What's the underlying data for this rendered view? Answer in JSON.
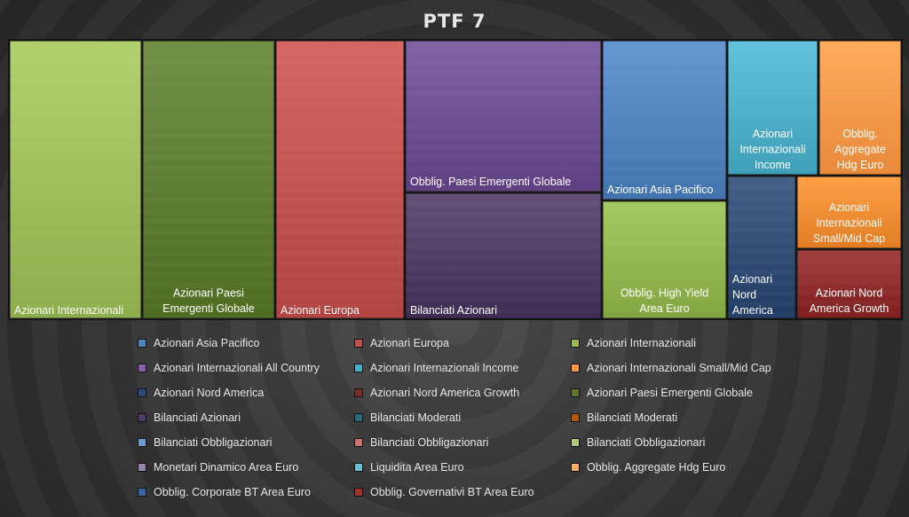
{
  "chart_data": {
    "type": "treemap",
    "title": "PTF 7",
    "tiles": [
      {
        "label": "Azionari Internazionali",
        "series": "Azionari Internazionali",
        "color": "#9bbb59"
      },
      {
        "label": "Azionari Paesi\nEmergenti Globale",
        "series": "Azionari Paesi Emergenti Globale",
        "color": "#5b7a2e"
      },
      {
        "label": "Azionari Europa",
        "series": "Azionari Europa",
        "color": "#c0504d"
      },
      {
        "label": "Obblig. Paesi Emergenti Globale",
        "series": "Azionari Internazionali All Country",
        "color": "#6b4c8f"
      },
      {
        "label": "Bilanciati Azionari",
        "series": "Bilanciati Azionari",
        "color": "#4d3a63"
      },
      {
        "label": "Azionari Asia Pacifico",
        "series": "Azionari Asia Pacifico",
        "color": "#4f81bd"
      },
      {
        "label": "Obblig. High Yield\nArea Euro",
        "series": "Bilanciati Obbligazionari",
        "color": "#8fb34d"
      },
      {
        "label": "Azionari\nInternazionali\nIncome",
        "series": "Azionari Internazionali Income",
        "color": "#4bacc6"
      },
      {
        "label": "Obblig.\nAggregate\nHdg Euro",
        "series": "Obblig. Aggregate Hdg Euro",
        "color": "#f79646"
      },
      {
        "label": "Azionari\nNord\nAmerica",
        "series": "Azionari Nord America",
        "color": "#2e4a73"
      },
      {
        "label": "Azionari\nInternazionali\nSmall/Mid Cap",
        "series": "Azionari Internazionali Small/Mid Cap",
        "color": "#f08a30"
      },
      {
        "label": "Azionari Nord\nAmerica Growth",
        "series": "Azionari Nord America Growth",
        "color": "#8c2a2a"
      }
    ],
    "legend": [
      {
        "name": "Azionari Asia Pacifico",
        "color": "#4f81bd"
      },
      {
        "name": "Azionari Europa",
        "color": "#c0504d"
      },
      {
        "name": "Azionari Internazionali",
        "color": "#9bbb59"
      },
      {
        "name": "Azionari Internazionali All Country",
        "color": "#8064a2"
      },
      {
        "name": "Azionari Internazionali Income",
        "color": "#4bacc6"
      },
      {
        "name": "Azionari Internazionali Small/Mid Cap",
        "color": "#f79646"
      },
      {
        "name": "Azionari Nord America",
        "color": "#2c4d75"
      },
      {
        "name": "Azionari Nord America Growth",
        "color": "#772c2a"
      },
      {
        "name": "Azionari Paesi Emergenti Globale",
        "color": "#5f7530"
      },
      {
        "name": "Bilanciati Azionari",
        "color": "#4d3b62"
      },
      {
        "name": "Bilanciati Moderati",
        "color": "#276a7c"
      },
      {
        "name": "Bilanciati Moderati",
        "color": "#b65708"
      },
      {
        "name": "Bilanciati Obbligazionari",
        "color": "#729aca"
      },
      {
        "name": "Bilanciati Obbligazionari",
        "color": "#cd7371"
      },
      {
        "name": "Bilanciati Obbligazionari",
        "color": "#afc97a"
      },
      {
        "name": "Monetari Dinamico Area Euro",
        "color": "#9983b5"
      },
      {
        "name": "Liquidita Area Euro",
        "color": "#6fbdd1"
      },
      {
        "name": "Obblig. Aggregate Hdg Euro",
        "color": "#f9ab6b"
      },
      {
        "name": "Obblig. Corporate BT Area Euro",
        "color": "#3a64a0"
      },
      {
        "name": "Obblig. Governativi BT Area Euro",
        "color": "#a0322e"
      }
    ],
    "legend_placement": "bottom"
  }
}
